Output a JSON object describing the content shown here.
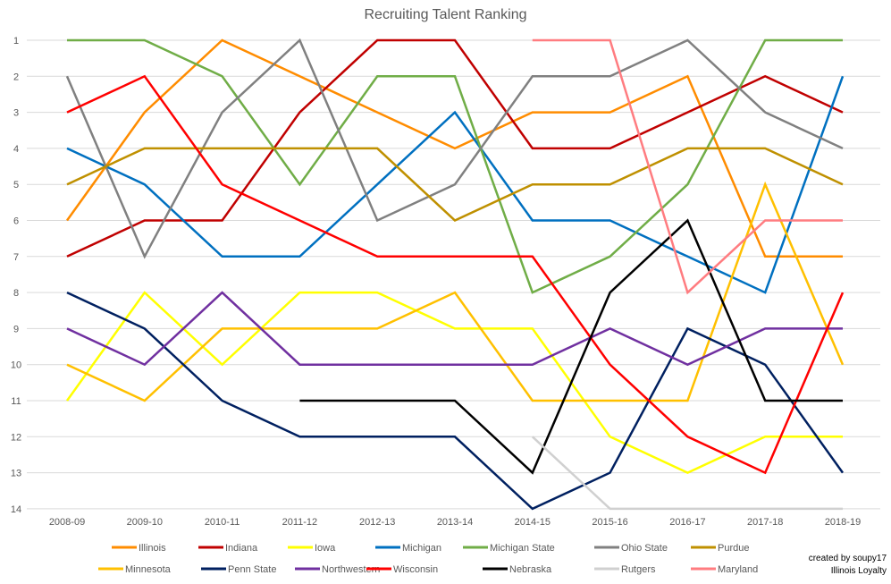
{
  "chart_data": {
    "type": "line",
    "title": "Recruiting Talent Ranking",
    "xlabel": "",
    "ylabel": "",
    "categories": [
      "2008-09",
      "2009-10",
      "2010-11",
      "2011-12",
      "2012-13",
      "2013-14",
      "2014-15",
      "2015-16",
      "2016-17",
      "2017-18",
      "2018-19"
    ],
    "ylim": [
      1,
      14
    ],
    "y_reversed": true,
    "y_ticks": [
      1,
      2,
      3,
      4,
      5,
      6,
      7,
      8,
      9,
      10,
      11,
      12,
      13,
      14
    ],
    "grid": true,
    "legend": "bottom",
    "series": [
      {
        "name": "Illinois",
        "color": "#FF8C00",
        "values": [
          6,
          3,
          1,
          2,
          3,
          4,
          3,
          3,
          2,
          7,
          7
        ]
      },
      {
        "name": "Indiana",
        "color": "#C00000",
        "values": [
          7,
          6,
          6,
          3,
          1,
          1,
          4,
          4,
          3,
          2,
          3
        ]
      },
      {
        "name": "Iowa",
        "color": "#FFFF00",
        "values": [
          11,
          8,
          10,
          8,
          8,
          9,
          9,
          12,
          13,
          12,
          12
        ]
      },
      {
        "name": "Michigan",
        "color": "#0070C0",
        "values": [
          4,
          5,
          7,
          7,
          5,
          3,
          6,
          6,
          7,
          8,
          2
        ]
      },
      {
        "name": "Michigan State",
        "color": "#70AD47",
        "values": [
          1,
          1,
          2,
          5,
          2,
          2,
          8,
          7,
          5,
          1,
          1
        ]
      },
      {
        "name": "Ohio State",
        "color": "#808080",
        "values": [
          2,
          7,
          3,
          1,
          6,
          5,
          2,
          2,
          1,
          3,
          4
        ]
      },
      {
        "name": "Purdue",
        "color": "#BF9000",
        "values": [
          5,
          4,
          4,
          4,
          4,
          6,
          5,
          5,
          4,
          4,
          5
        ]
      },
      {
        "name": "Minnesota",
        "color": "#FFC000",
        "values": [
          10,
          11,
          9,
          9,
          9,
          8,
          11,
          11,
          11,
          5,
          10
        ]
      },
      {
        "name": "Penn State",
        "color": "#002060",
        "values": [
          8,
          9,
          11,
          12,
          12,
          12,
          14,
          13,
          9,
          10,
          13
        ]
      },
      {
        "name": "Northwestern",
        "color": "#7030A0",
        "values": [
          9,
          10,
          8,
          10,
          10,
          10,
          10,
          9,
          10,
          9,
          9
        ]
      },
      {
        "name": "Wisconsin",
        "color": "#FF0000",
        "values": [
          3,
          2,
          5,
          6,
          7,
          7,
          7,
          10,
          12,
          13,
          8
        ]
      },
      {
        "name": "Nebraska",
        "color": "#000000",
        "values": [
          null,
          null,
          null,
          11,
          11,
          11,
          13,
          8,
          6,
          11,
          11
        ]
      },
      {
        "name": "Rutgers",
        "color": "#D0D0D0",
        "values": [
          null,
          null,
          null,
          null,
          null,
          null,
          12,
          14,
          14,
          14,
          14
        ]
      },
      {
        "name": "Maryland",
        "color": "#FF7C80",
        "values": [
          null,
          null,
          null,
          null,
          null,
          null,
          1,
          1,
          8,
          6,
          6
        ]
      }
    ]
  },
  "credit": {
    "line1": "created by soupy17",
    "line2": "Illinois Loyalty"
  }
}
